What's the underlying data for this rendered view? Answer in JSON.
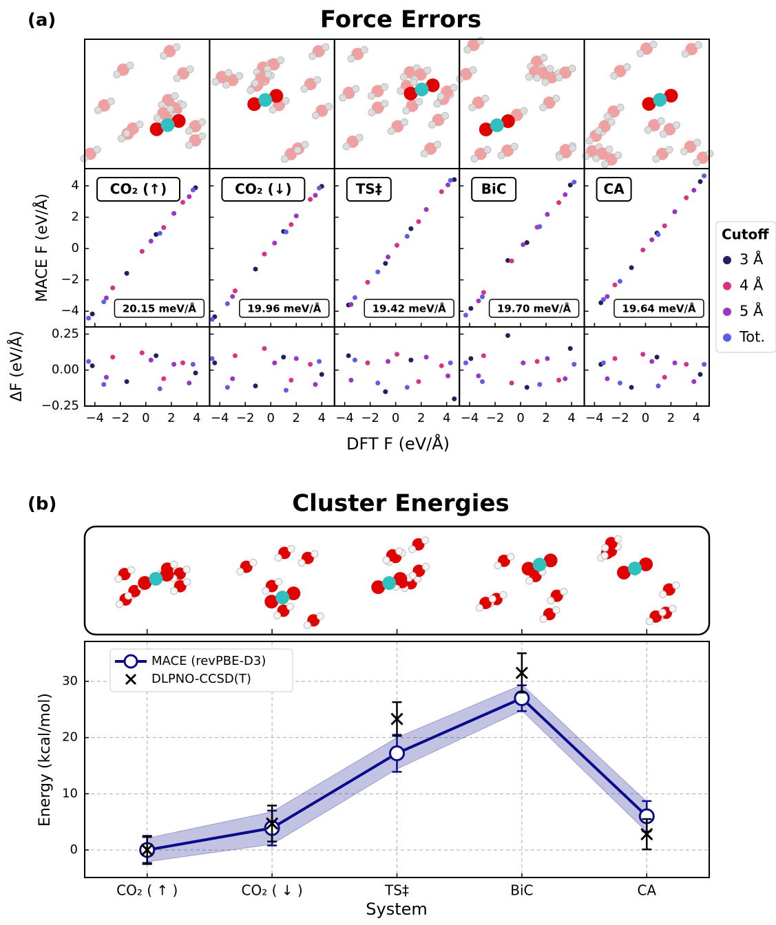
{
  "chart_data": [
    {
      "type": "scatter",
      "title": "Force Errors",
      "panel_label": "(a)",
      "ylabel": "MACE F (eV/Å)",
      "y2label": "ΔF (eV/Å)",
      "xlabel": "DFT F (eV/Å)",
      "legend_title": "Cutoff",
      "series": [
        {
          "name": "3 Å",
          "color": "#241f5e"
        },
        {
          "name": "4 Å",
          "color": "#d93183"
        },
        {
          "name": "5 Å",
          "color": "#9c34c4"
        },
        {
          "name": "Tot.",
          "color": "#5b5fe3"
        }
      ],
      "xlim": [
        -4.8,
        5
      ],
      "xticks": [
        {
          "value": -4,
          "label": "−4"
        },
        {
          "value": -2,
          "label": "−2"
        },
        0,
        2,
        4
      ],
      "ylim": [
        -5,
        5.1
      ],
      "yticks": [
        {
          "value": -4,
          "label": "−4"
        },
        {
          "value": -2,
          "label": "−2"
        },
        0,
        2,
        4
      ],
      "y2lim": [
        -0.25,
        0.3
      ],
      "y2ticks": [
        {
          "value": -0.25,
          "label": "−0.25"
        },
        {
          "value": 0,
          "label": "0.00"
        },
        0.25
      ],
      "panels": [
        {
          "label": "CO₂ (↑)",
          "mae": "20.15 meV/Å",
          "points": [
            {
              "x": [
                -4.2,
                -1.5,
                0.8,
                3.9
              ],
              "y": [
                -4.17,
                -1.58,
                0.9,
                3.88
              ],
              "dy": [
                0.03,
                -0.08,
                0.1,
                -0.02
              ]
            },
            {
              "x": [
                -2.6,
                -0.3,
                1.4,
                2.9
              ],
              "y": [
                -2.51,
                -0.18,
                1.34,
                2.95
              ],
              "dy": [
                0.09,
                0.12,
                -0.06,
                0.05
              ]
            },
            {
              "x": [
                -3.1,
                0.4,
                2.2,
                3.4
              ],
              "y": [
                -3.15,
                0.47,
                2.24,
                3.31
              ],
              "dy": [
                -0.05,
                0.07,
                0.04,
                -0.09
              ]
            },
            {
              "x": [
                -4.5,
                -3.3,
                1.1,
                3.7
              ],
              "y": [
                -4.44,
                -3.4,
                0.97,
                3.74
              ],
              "dy": [
                0.06,
                -0.1,
                -0.13,
                0.04
              ]
            }
          ]
        },
        {
          "label": "CO₂ (↓)",
          "mae": "19.96 meV/Å",
          "points": [
            {
              "x": [
                -4.4,
                -1.2,
                1.0,
                4.0
              ],
              "y": [
                -4.35,
                -1.31,
                1.09,
                3.97
              ],
              "dy": [
                0.05,
                -0.11,
                0.09,
                -0.03
              ]
            },
            {
              "x": [
                -2.8,
                -0.5,
                1.6,
                3.1
              ],
              "y": [
                -2.7,
                -0.35,
                1.53,
                3.14
              ],
              "dy": [
                0.1,
                0.15,
                -0.07,
                0.04
              ]
            },
            {
              "x": [
                -3.0,
                0.3,
                2.0,
                3.5
              ],
              "y": [
                -3.06,
                0.35,
                2.08,
                3.4
              ],
              "dy": [
                -0.06,
                0.05,
                0.08,
                -0.1
              ]
            },
            {
              "x": [
                -4.6,
                -3.4,
                1.2,
                3.8
              ],
              "y": [
                -4.52,
                -3.52,
                1.06,
                3.86
              ],
              "dy": [
                0.08,
                -0.12,
                -0.14,
                0.06
              ]
            }
          ]
        },
        {
          "label": "TS‡",
          "mae": "19.42 meV/Å",
          "points": [
            {
              "x": [
                -3.7,
                -0.8,
                1.2,
                4.6
              ],
              "y": [
                -3.6,
                -0.95,
                1.27,
                4.4
              ],
              "dy": [
                0.1,
                -0.15,
                0.07,
                -0.2
              ]
            },
            {
              "x": [
                -2.2,
                0.1,
                1.8,
                3.6
              ],
              "y": [
                -2.15,
                0.21,
                1.72,
                3.63
              ],
              "dy": [
                0.05,
                0.11,
                -0.08,
                0.03
              ]
            },
            {
              "x": [
                -3.5,
                -0.6,
                2.4,
                4.1
              ],
              "y": [
                -3.57,
                -0.54,
                2.49,
                4.06
              ],
              "dy": [
                -0.07,
                0.06,
                0.09,
                -0.04
              ]
            },
            {
              "x": [
                -3.2,
                -1.4,
                0.9,
                4.3
              ],
              "y": [
                -3.13,
                -1.49,
                0.78,
                4.35
              ],
              "dy": [
                0.07,
                -0.09,
                -0.12,
                0.05
              ]
            }
          ]
        },
        {
          "label": "BiC",
          "mae": "19.70 meV/Å",
          "points": [
            {
              "x": [
                -3.9,
                -1.0,
                0.5,
                3.9
              ],
              "y": [
                -3.82,
                -0.76,
                0.38,
                4.05
              ],
              "dy": [
                0.08,
                0.24,
                -0.12,
                0.15
              ]
            },
            {
              "x": [
                -2.9,
                -0.7,
                1.3,
                3.0
              ],
              "y": [
                -2.8,
                -0.79,
                1.36,
                2.93
              ],
              "dy": [
                0.1,
                -0.09,
                0.06,
                -0.07
              ]
            },
            {
              "x": [
                -3.3,
                0.2,
                2.1,
                3.5
              ],
              "y": [
                -3.34,
                0.25,
                2.18,
                3.44
              ],
              "dy": [
                -0.04,
                0.05,
                0.08,
                -0.06
              ]
            },
            {
              "x": [
                -4.3,
                -3.0,
                1.5,
                4.2
              ],
              "y": [
                -4.25,
                -3.08,
                1.4,
                4.24
              ],
              "dy": [
                0.05,
                -0.08,
                -0.1,
                0.04
              ]
            }
          ]
        },
        {
          "label": "CA",
          "mae": "19.64 meV/Å",
          "points": [
            {
              "x": [
                -3.5,
                -1.1,
                0.9,
                4.3
              ],
              "y": [
                -3.46,
                -1.22,
                0.99,
                4.27
              ],
              "dy": [
                0.04,
                -0.12,
                0.09,
                -0.03
              ]
            },
            {
              "x": [
                -2.4,
                -0.2,
                1.5,
                3.2
              ],
              "y": [
                -2.32,
                -0.09,
                1.45,
                3.24
              ],
              "dy": [
                0.08,
                0.11,
                -0.05,
                0.04
              ]
            },
            {
              "x": [
                -3.0,
                0.5,
                2.3,
                3.8
              ],
              "y": [
                -3.06,
                0.56,
                2.35,
                3.72
              ],
              "dy": [
                -0.06,
                0.06,
                0.05,
                -0.08
              ]
            },
            {
              "x": [
                -3.3,
                -2.0,
                1.0,
                4.6
              ],
              "y": [
                -3.25,
                -2.09,
                0.89,
                4.64
              ],
              "dy": [
                0.05,
                -0.09,
                -0.11,
                0.04
              ]
            }
          ]
        }
      ]
    },
    {
      "type": "line",
      "title": "Cluster Energies",
      "panel_label": "(b)",
      "ylabel": "Energy  (kcal/mol)",
      "xlabel": "System",
      "categories": [
        "CO₂ ( ↑ )",
        "CO₂ ( ↓ )",
        "TS‡",
        "BiC",
        "CA"
      ],
      "ylim": [
        -4.9,
        37.1
      ],
      "yticks": [
        0,
        10,
        20,
        30
      ],
      "grid": true,
      "legend": "upper left",
      "series": [
        {
          "name": "MACE (revPBE-D3)",
          "color": "#0a0a8c",
          "values": [
            0,
            3.9,
            17.2,
            27.0,
            6.0
          ],
          "errors": [
            2.3,
            3.1,
            3.3,
            2.3,
            2.7
          ],
          "band_lower": [
            -2.1,
            1.0,
            14.4,
            24.8,
            3.2
          ],
          "band_upper": [
            2.1,
            6.8,
            20.0,
            29.4,
            8.6
          ]
        },
        {
          "name": "DLPNO-CCSD(T)",
          "color": "#000000",
          "values": [
            0,
            4.7,
            23.3,
            31.5,
            2.8
          ],
          "errors": [
            2.5,
            3.2,
            3.0,
            3.5,
            2.7
          ]
        }
      ]
    }
  ]
}
